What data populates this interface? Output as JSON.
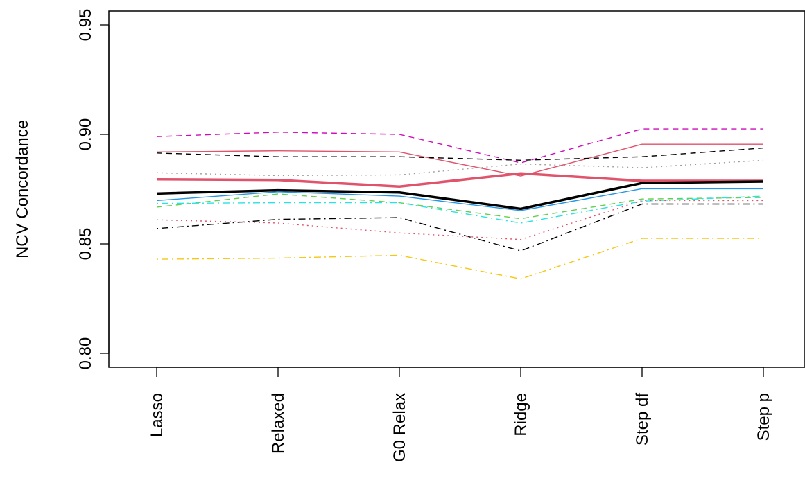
{
  "chart_data": {
    "type": "line",
    "title": "",
    "xlabel": "",
    "ylabel": "NCV Concordance",
    "categories": [
      "Lasso",
      "Relaxed",
      "G0 Relax",
      "Ridge",
      "Step df",
      "Step p"
    ],
    "ylim": [
      0.8,
      0.95
    ],
    "yticks": [
      "0.80",
      "0.85",
      "0.90",
      "0.95"
    ],
    "grid": false,
    "legend": "none",
    "series": [
      {
        "color": "#CD0BBC",
        "dash": "dashed",
        "width": "thin",
        "values": [
          0.899,
          0.901,
          0.9,
          0.887,
          0.9025,
          0.9025
        ]
      },
      {
        "color": "#DF536B",
        "dash": "solid",
        "width": "thin",
        "values": [
          0.892,
          0.8925,
          0.892,
          0.881,
          0.8955,
          0.8955
        ]
      },
      {
        "color": "#000000",
        "dash": "dashed",
        "width": "thin",
        "values": [
          0.8915,
          0.8898,
          0.8898,
          0.8882,
          0.8898,
          0.8938
        ]
      },
      {
        "color": "#9E9E9E",
        "dash": "dotted",
        "width": "thin",
        "values": [
          0.8825,
          0.8812,
          0.8815,
          0.8865,
          0.8848,
          0.8882
        ]
      },
      {
        "color": "#DF536B",
        "dash": "solid",
        "width": "thick",
        "values": [
          0.8795,
          0.8792,
          0.8762,
          0.8822,
          0.8788,
          0.8788
        ]
      },
      {
        "color": "#000000",
        "dash": "solid",
        "width": "thick",
        "values": [
          0.873,
          0.8745,
          0.8735,
          0.866,
          0.8778,
          0.8785
        ]
      },
      {
        "color": "#2297E6",
        "dash": "solid",
        "width": "thin",
        "values": [
          0.8698,
          0.8738,
          0.8718,
          0.8652,
          0.8752,
          0.8752
        ]
      },
      {
        "color": "#61D04F",
        "dash": "dashed",
        "width": "thin",
        "values": [
          0.8668,
          0.8728,
          0.8688,
          0.8615,
          0.8705,
          0.8712
        ]
      },
      {
        "color": "#28E2E5",
        "dash": "dashdot",
        "width": "thin",
        "values": [
          0.8685,
          0.8688,
          0.8688,
          0.8595,
          0.8695,
          0.8718
        ]
      },
      {
        "color": "#000000",
        "dash": "dashdot",
        "width": "thin",
        "values": [
          0.857,
          0.8612,
          0.862,
          0.8468,
          0.8682,
          0.8682
        ]
      },
      {
        "color": "#DF536B",
        "dash": "dotted",
        "width": "thin",
        "values": [
          0.861,
          0.8595,
          0.855,
          0.852,
          0.8698,
          0.8698
        ]
      },
      {
        "color": "#F5C710",
        "dash": "dashdot",
        "width": "thin",
        "values": [
          0.843,
          0.8435,
          0.8448,
          0.834,
          0.8525,
          0.8525
        ]
      }
    ]
  }
}
